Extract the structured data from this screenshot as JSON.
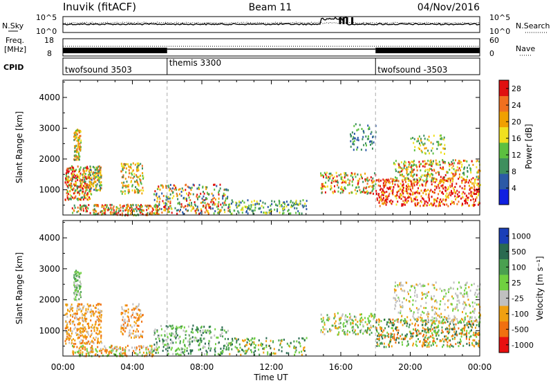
{
  "header": {
    "station": "Inuvik (fitACF)",
    "beam": "Beam 11",
    "date": "04/Nov/2016"
  },
  "noise_panel": {
    "left_label": "N.Sky",
    "right_label": "N.Search",
    "left_ticks": [
      "10^5",
      "10^0"
    ],
    "right_ticks": [
      "10^5",
      "10^0"
    ]
  },
  "freq_panel": {
    "left_label_1": "Freq.",
    "left_label_2": "[MHz]",
    "right_label": "Nave",
    "left_ticks": [
      "18",
      "8"
    ],
    "right_ticks": [
      "60",
      "0"
    ]
  },
  "cpid_panel": {
    "label": "CPID",
    "modes": [
      {
        "name": "twofsound 3503",
        "start_hour": 0
      },
      {
        "name": "themis 3300",
        "start_hour": 6
      },
      {
        "name": "twofsound -3503",
        "start_hour": 18
      }
    ]
  },
  "chart_data": [
    {
      "type": "heatmap",
      "title": "",
      "quantity": "Power",
      "xlabel": "",
      "ylabel": "Slant Range [km]",
      "x_range_hours": [
        0,
        24
      ],
      "y_range_km": [
        180,
        4560
      ],
      "y_ticks": [
        "1000",
        "2000",
        "3000",
        "4000"
      ],
      "colorbar": {
        "label": "Power [dB]",
        "tick_labels": [
          "4",
          "8",
          "12",
          "16",
          "20",
          "24",
          "28"
        ],
        "range": [
          0,
          30
        ]
      },
      "mode_change_hours": [
        6,
        18
      ]
    },
    {
      "type": "heatmap",
      "title": "",
      "quantity": "Velocity",
      "xlabel": "Time UT",
      "ylabel": "Slant Range [km]",
      "x_range_hours": [
        0,
        24
      ],
      "y_range_km": [
        180,
        4560
      ],
      "y_ticks": [
        "1000",
        "2000",
        "3000",
        "4000"
      ],
      "x_tick_labels": [
        "00:00",
        "04:00",
        "08:00",
        "12:00",
        "16:00",
        "20:00",
        "00:00"
      ],
      "colorbar": {
        "label": "Velocity [m s⁻¹]",
        "tick_labels": [
          "1000",
          "500",
          "100",
          "25",
          "-25",
          "-100",
          "-500",
          "-1000"
        ]
      },
      "mode_change_hours": [
        6,
        18
      ]
    }
  ],
  "colors": {
    "power": [
      "#1020e0",
      "#2c5aa6",
      "#3e8f5e",
      "#5cc040",
      "#f0e020",
      "#f0a000",
      "#f07020",
      "#e01010"
    ],
    "velocity": [
      "#1a3fb8",
      "#2a6a50",
      "#4aa050",
      "#70d040",
      "#c0c0c0",
      "#f0a010",
      "#f07010",
      "#e81010"
    ]
  }
}
